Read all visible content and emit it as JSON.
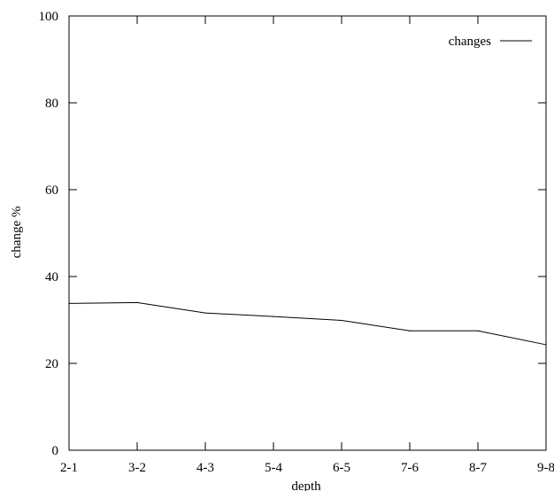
{
  "chart_data": {
    "type": "line",
    "xlabel": "depth",
    "ylabel": "change %",
    "categories": [
      "2-1",
      "3-2",
      "4-3",
      "5-4",
      "6-5",
      "7-6",
      "8-7",
      "9-8"
    ],
    "ylim": [
      0,
      100
    ],
    "yticks": [
      0,
      20,
      40,
      60,
      80,
      100
    ],
    "grid": false,
    "legend_position": "top-right",
    "series": [
      {
        "name": "changes",
        "color": "#000000",
        "values": [
          33.8,
          34.0,
          31.6,
          30.8,
          29.9,
          27.5,
          27.5,
          24.3
        ]
      }
    ]
  }
}
